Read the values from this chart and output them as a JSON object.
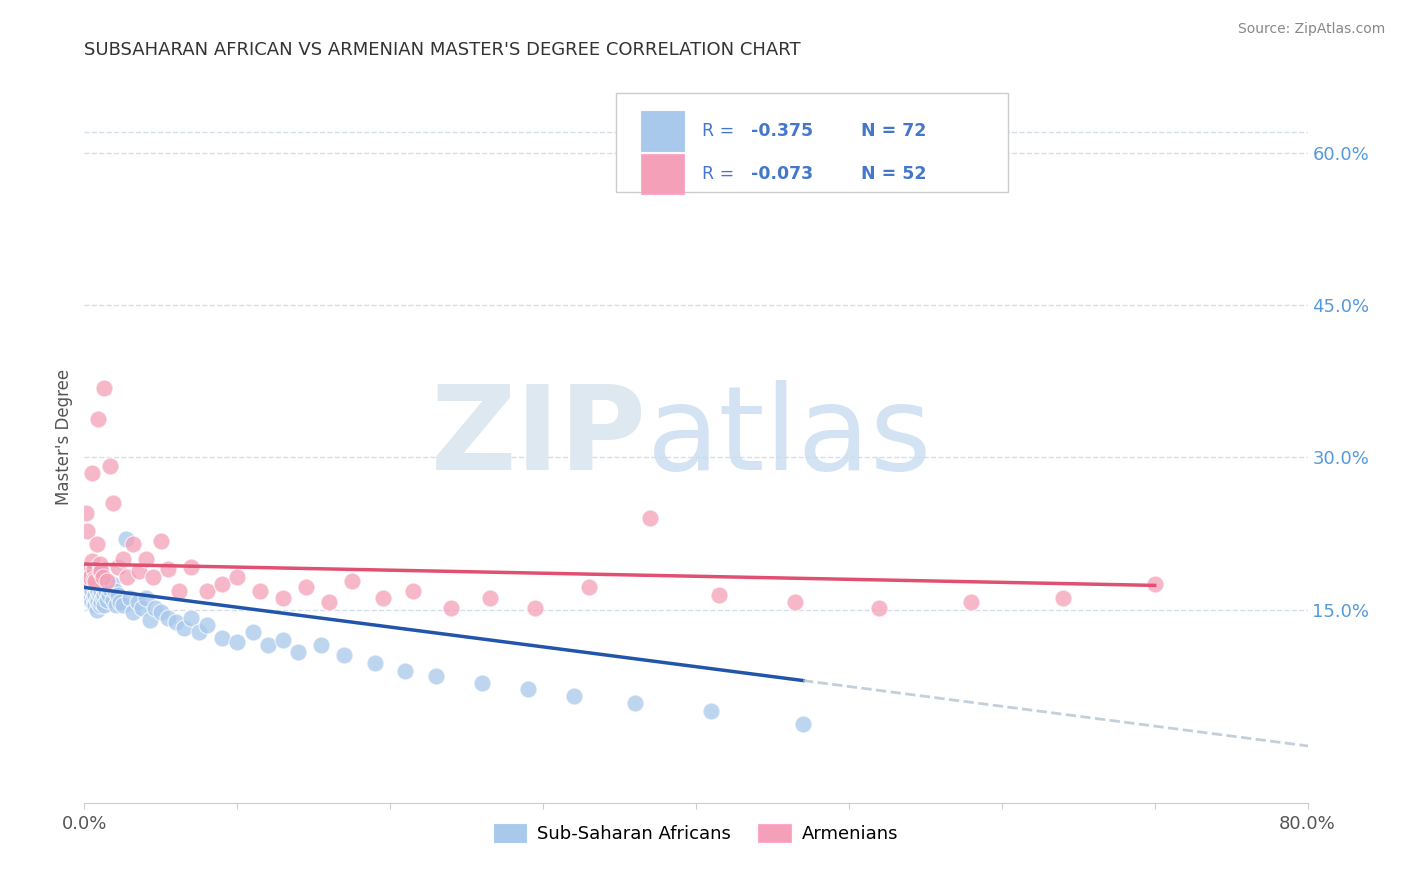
{
  "title": "SUBSAHARAN AFRICAN VS ARMENIAN MASTER'S DEGREE CORRELATION CHART",
  "source": "Source: ZipAtlas.com",
  "ylabel": "Master's Degree",
  "right_yticks": [
    "60.0%",
    "45.0%",
    "30.0%",
    "15.0%"
  ],
  "right_ytick_vals": [
    0.6,
    0.45,
    0.3,
    0.15
  ],
  "legend_blue_r": "-0.375",
  "legend_blue_n": "72",
  "legend_pink_r": "-0.073",
  "legend_pink_n": "52",
  "blue_color": "#A8C8EC",
  "pink_color": "#F4A0B8",
  "blue_line_color": "#2255AA",
  "pink_line_color": "#E05070",
  "legend_text_color": "#4477CC",
  "title_color": "#333333",
  "source_color": "#888888",
  "grid_color": "#C8D8E8",
  "background_color": "#FFFFFF",
  "right_axis_color": "#5599DD",
  "blue_scatter_x": [
    0.002,
    0.003,
    0.003,
    0.004,
    0.004,
    0.005,
    0.005,
    0.005,
    0.006,
    0.006,
    0.006,
    0.007,
    0.007,
    0.007,
    0.008,
    0.008,
    0.008,
    0.009,
    0.009,
    0.01,
    0.01,
    0.01,
    0.011,
    0.011,
    0.012,
    0.012,
    0.013,
    0.013,
    0.014,
    0.015,
    0.015,
    0.016,
    0.017,
    0.018,
    0.019,
    0.02,
    0.021,
    0.022,
    0.023,
    0.025,
    0.027,
    0.03,
    0.032,
    0.035,
    0.038,
    0.04,
    0.043,
    0.046,
    0.05,
    0.055,
    0.06,
    0.065,
    0.07,
    0.075,
    0.08,
    0.09,
    0.1,
    0.11,
    0.12,
    0.13,
    0.14,
    0.155,
    0.17,
    0.19,
    0.21,
    0.23,
    0.26,
    0.29,
    0.32,
    0.36,
    0.41,
    0.47
  ],
  "blue_scatter_y": [
    0.18,
    0.175,
    0.165,
    0.172,
    0.16,
    0.178,
    0.168,
    0.158,
    0.172,
    0.162,
    0.155,
    0.175,
    0.165,
    0.155,
    0.17,
    0.16,
    0.15,
    0.168,
    0.158,
    0.175,
    0.165,
    0.155,
    0.168,
    0.158,
    0.172,
    0.162,
    0.165,
    0.155,
    0.168,
    0.175,
    0.16,
    0.165,
    0.17,
    0.175,
    0.16,
    0.168,
    0.155,
    0.165,
    0.158,
    0.155,
    0.22,
    0.162,
    0.148,
    0.158,
    0.152,
    0.162,
    0.14,
    0.152,
    0.148,
    0.142,
    0.138,
    0.132,
    0.142,
    0.128,
    0.135,
    0.122,
    0.118,
    0.128,
    0.115,
    0.12,
    0.108,
    0.115,
    0.105,
    0.098,
    0.09,
    0.085,
    0.078,
    0.072,
    0.065,
    0.058,
    0.05,
    0.038
  ],
  "pink_scatter_x": [
    0.001,
    0.002,
    0.003,
    0.003,
    0.004,
    0.005,
    0.005,
    0.006,
    0.006,
    0.007,
    0.008,
    0.009,
    0.01,
    0.01,
    0.011,
    0.012,
    0.013,
    0.015,
    0.017,
    0.019,
    0.022,
    0.025,
    0.028,
    0.032,
    0.036,
    0.04,
    0.045,
    0.05,
    0.055,
    0.062,
    0.07,
    0.08,
    0.09,
    0.1,
    0.115,
    0.13,
    0.145,
    0.16,
    0.175,
    0.195,
    0.215,
    0.24,
    0.265,
    0.295,
    0.33,
    0.37,
    0.415,
    0.465,
    0.52,
    0.58,
    0.64,
    0.7
  ],
  "pink_scatter_y": [
    0.245,
    0.228,
    0.188,
    0.178,
    0.182,
    0.285,
    0.198,
    0.19,
    0.18,
    0.178,
    0.215,
    0.338,
    0.195,
    0.188,
    0.188,
    0.182,
    0.368,
    0.178,
    0.292,
    0.255,
    0.192,
    0.2,
    0.182,
    0.215,
    0.188,
    0.2,
    0.182,
    0.218,
    0.19,
    0.168,
    0.192,
    0.168,
    0.175,
    0.182,
    0.168,
    0.162,
    0.172,
    0.158,
    0.178,
    0.162,
    0.168,
    0.152,
    0.162,
    0.152,
    0.172,
    0.24,
    0.165,
    0.158,
    0.152,
    0.158,
    0.162,
    0.175
  ],
  "xlim": [
    0.0,
    0.8
  ],
  "ylim": [
    -0.04,
    0.68
  ],
  "blue_regression_slope": -0.195,
  "blue_regression_intercept": 0.172,
  "pink_regression_slope": -0.03,
  "pink_regression_intercept": 0.195
}
